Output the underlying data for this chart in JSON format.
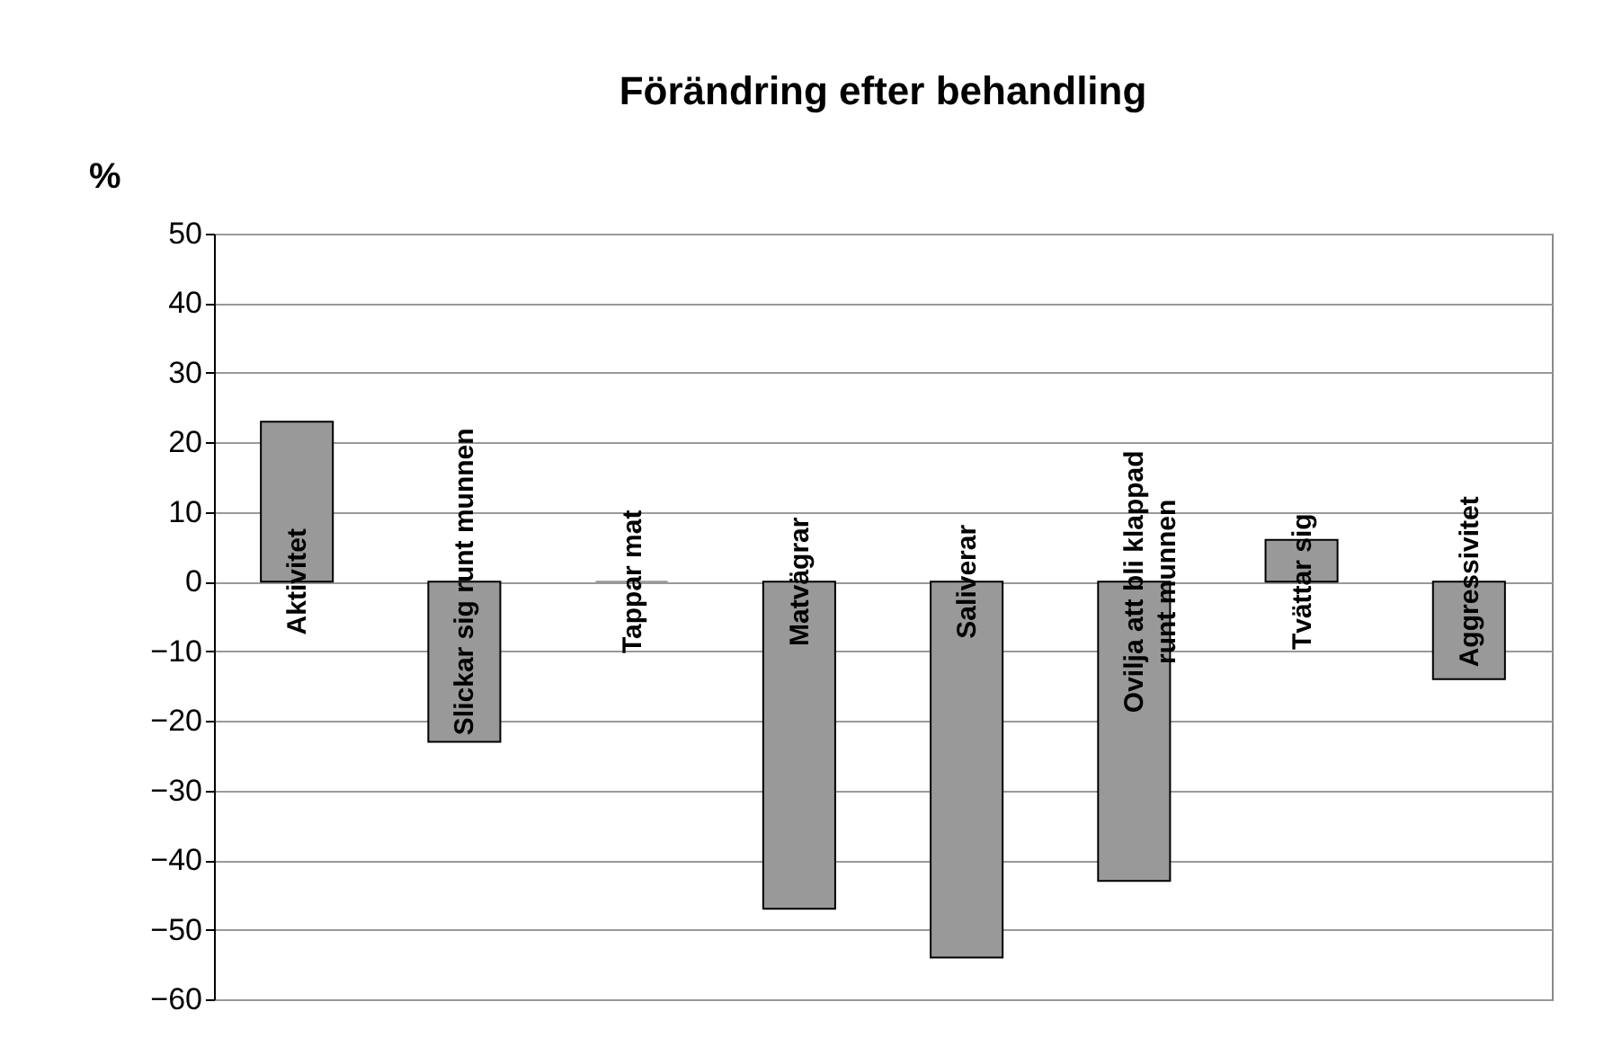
{
  "chart_data": {
    "type": "bar",
    "title": "Förändring efter behandling",
    "ylabel": "%",
    "categories": [
      "Aktivitet",
      "Slickar sig runt munnen",
      "Tappar mat",
      "Matvägrar",
      "Saliverar",
      "Ovilja att bli klappad\nrunt munnen",
      "Tvättar sig",
      "Aggressivitet"
    ],
    "values": [
      23,
      -23,
      0,
      -47,
      -54,
      -43,
      6,
      -14
    ],
    "color": "#999999",
    "ylim": [
      -60,
      50
    ],
    "yticks": [
      -60,
      -50,
      -40,
      -30,
      -20,
      -10,
      0,
      10,
      20,
      30,
      40,
      50
    ],
    "grid": "y"
  }
}
